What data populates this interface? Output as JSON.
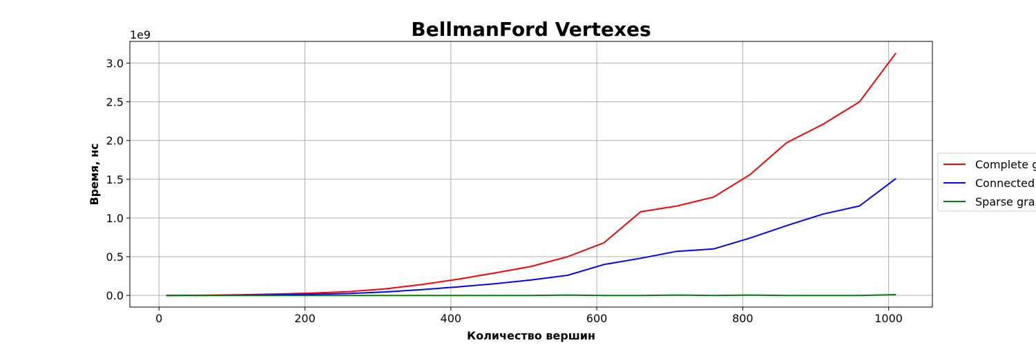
{
  "chart_data": {
    "type": "line",
    "title": "BellmanFord Vertexes",
    "xlabel": "Количество вершин",
    "ylabel": "Время, нс",
    "y_offset_label": "1e9",
    "xlim": [
      -40,
      1060
    ],
    "ylim": [
      -0.15,
      3.28
    ],
    "x_ticks": [
      0,
      200,
      400,
      600,
      800,
      1000
    ],
    "x_tick_labels": [
      "0",
      "200",
      "400",
      "600",
      "800",
      "1000"
    ],
    "y_ticks": [
      0,
      0.5,
      1.0,
      1.5,
      2.0,
      2.5,
      3.0
    ],
    "y_tick_labels": [
      "0.0",
      "0.5",
      "1.0",
      "1.5",
      "2.0",
      "2.5",
      "3.0"
    ],
    "grid": true,
    "legend_position": "right (outside, clipped)",
    "x": [
      10,
      60,
      110,
      160,
      210,
      260,
      310,
      360,
      410,
      460,
      510,
      560,
      610,
      660,
      710,
      760,
      810,
      860,
      910,
      960,
      1010
    ],
    "series": [
      {
        "name": "Complete g",
        "color": "#ff0000",
        "values": [
          0.0,
          0.002,
          0.008,
          0.018,
          0.03,
          0.05,
          0.085,
          0.14,
          0.21,
          0.29,
          0.375,
          0.5,
          0.68,
          1.08,
          1.155,
          1.27,
          1.56,
          1.97,
          2.21,
          2.5,
          3.13
        ]
      },
      {
        "name": "Connected",
        "color": "#0000ff",
        "values": [
          0.0,
          0.001,
          0.004,
          0.009,
          0.015,
          0.025,
          0.045,
          0.075,
          0.11,
          0.15,
          0.2,
          0.26,
          0.4,
          0.48,
          0.57,
          0.6,
          0.74,
          0.9,
          1.05,
          1.155,
          1.51
        ]
      },
      {
        "name": "Sparse gra",
        "color": "#008000",
        "values": [
          0.0,
          0.0,
          0.0,
          0.0,
          0.0,
          0.0,
          0.0,
          0.0,
          0.0,
          0.0,
          0.0,
          0.005,
          0.0,
          0.0,
          0.005,
          0.0,
          0.005,
          0.0,
          0.0,
          0.0,
          0.01
        ]
      }
    ]
  }
}
